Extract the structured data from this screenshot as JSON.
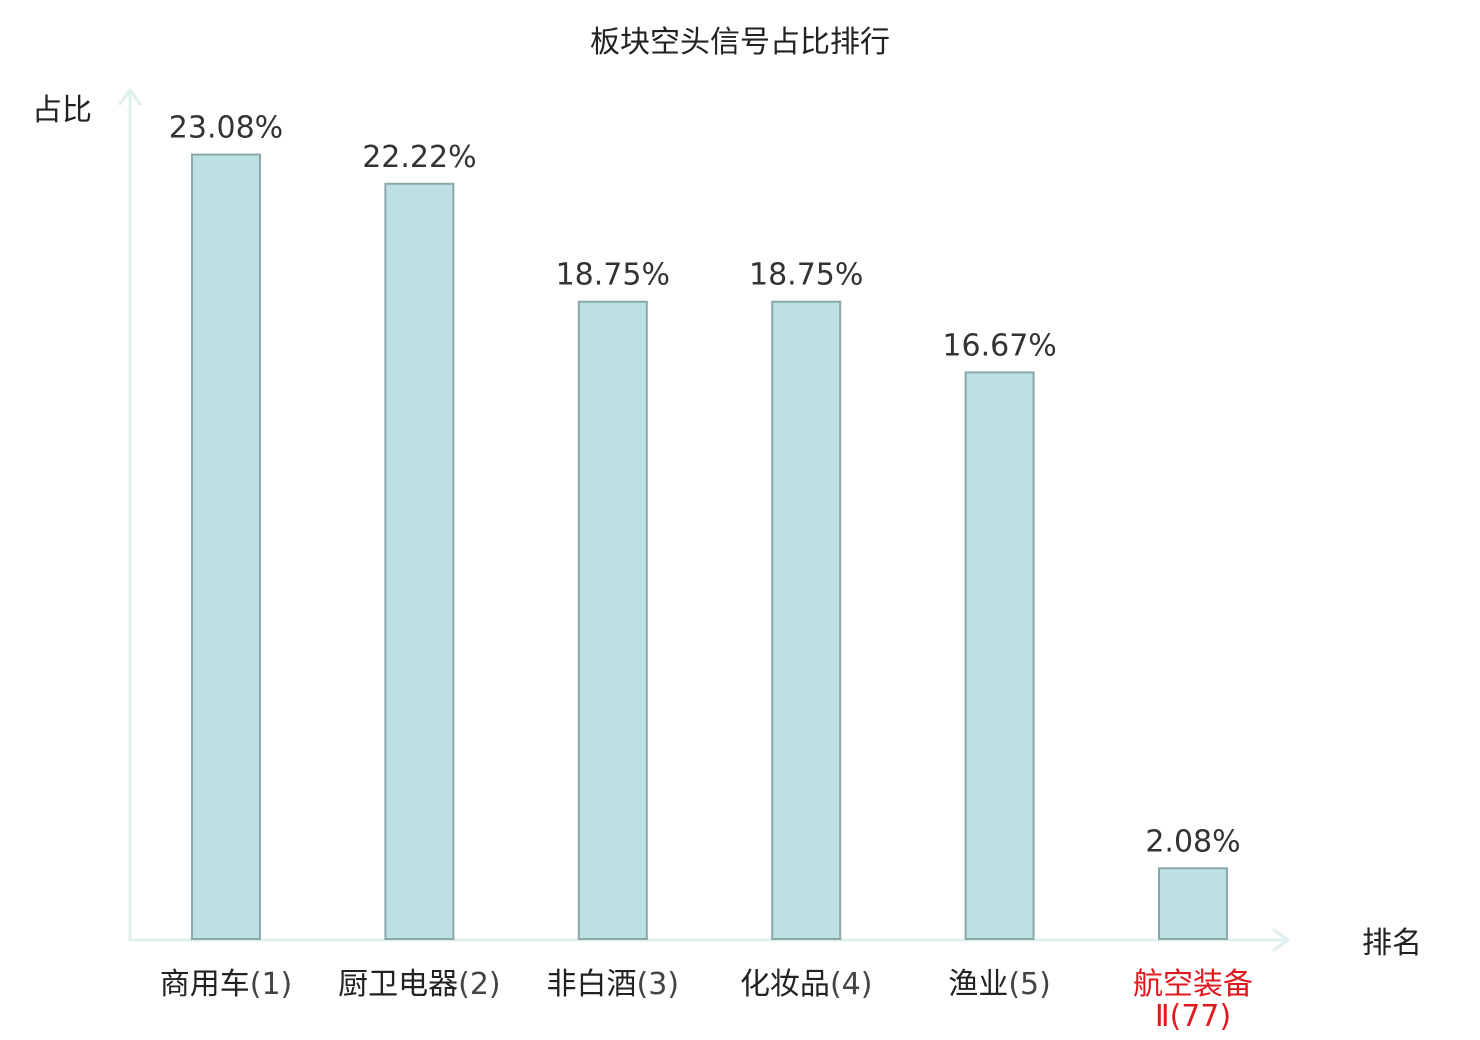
{
  "chart_data": {
    "type": "bar",
    "title": "板块空头信号占比排行",
    "ylabel": "占比",
    "xlabel": "排名",
    "categories": [
      {
        "name": "商用车",
        "rank": "(1)",
        "highlight": false
      },
      {
        "name": "厨卫电器",
        "rank": "(2)",
        "highlight": false
      },
      {
        "name": "非白酒",
        "rank": "(3)",
        "highlight": false
      },
      {
        "name": "化妆品",
        "rank": "(4)",
        "highlight": false
      },
      {
        "name": "渔业",
        "rank": "(5)",
        "highlight": false
      },
      {
        "name": "航空装备",
        "name_line2": "Ⅱ",
        "rank": "(77)",
        "highlight": true
      }
    ],
    "values": [
      23.08,
      22.22,
      18.75,
      18.75,
      16.67,
      2.08
    ],
    "value_labels": [
      "23.08%",
      "22.22%",
      "18.75%",
      "18.75%",
      "16.67%",
      "2.08%"
    ],
    "ylim": [
      0,
      25.45
    ],
    "grid": false,
    "legend": "none"
  },
  "colors": {
    "bar_fill": "#bde0e3",
    "bar_stroke": "#8aa8aa",
    "axis": "#dff0ee",
    "highlight_text": "#e0191e",
    "text": "#222222"
  }
}
